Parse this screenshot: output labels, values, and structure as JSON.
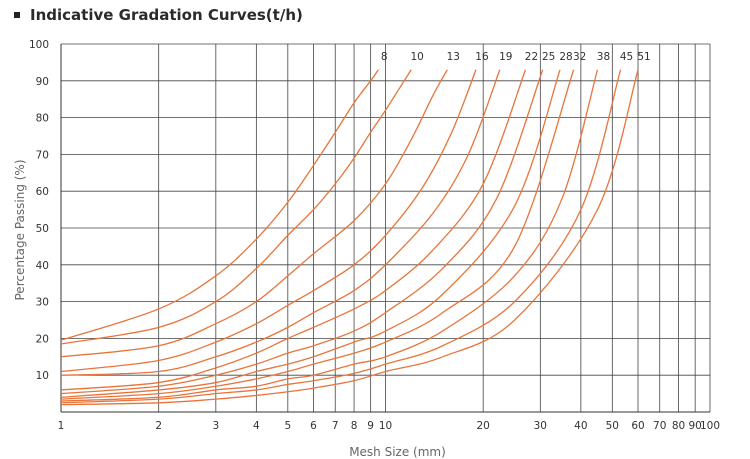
{
  "title": "Indicative Gradation Curves(t/h)",
  "chart_data": {
    "type": "line",
    "title": "Indicative Gradation Curves(t/h)",
    "xlabel": "Mesh Size (mm)",
    "ylabel": "Percentage Passing (%)",
    "x_scale": "log",
    "xlim": [
      1,
      100
    ],
    "ylim": [
      0,
      100
    ],
    "x_ticks": [
      1,
      2,
      3,
      4,
      5,
      6,
      7,
      8,
      9,
      10,
      20,
      30,
      40,
      50,
      60,
      70,
      80,
      90,
      100
    ],
    "y_ticks": [
      10,
      20,
      30,
      40,
      50,
      60,
      70,
      80,
      90,
      100
    ],
    "grid": true,
    "line_color": "#e8743b",
    "grid_color": "#444444",
    "series": [
      {
        "name": "8",
        "x": [
          1,
          2,
          3,
          4,
          5,
          6,
          7,
          8,
          9,
          9.5
        ],
        "y": [
          19.5,
          28,
          37,
          47,
          57,
          67,
          76,
          84,
          90,
          93
        ]
      },
      {
        "name": "10",
        "x": [
          1,
          2,
          3,
          4,
          5,
          6,
          7,
          8,
          9,
          10,
          12
        ],
        "y": [
          18.5,
          23,
          30,
          39,
          48,
          55,
          62,
          69,
          76,
          82,
          93
        ]
      },
      {
        "name": "13",
        "x": [
          1,
          2,
          3,
          4,
          5,
          6,
          8,
          10,
          12,
          14,
          15.5
        ],
        "y": [
          15,
          18,
          24,
          30,
          37,
          43,
          52,
          62,
          74,
          86,
          93
        ]
      },
      {
        "name": "16",
        "x": [
          1,
          2,
          3,
          4,
          5,
          6,
          8,
          10,
          13,
          16,
          19
        ],
        "y": [
          11,
          14,
          19,
          24,
          29,
          33,
          40,
          48,
          61,
          76,
          93
        ]
      },
      {
        "name": "19",
        "x": [
          1,
          2,
          3,
          4,
          5,
          6,
          8,
          10,
          14,
          18,
          22.5
        ],
        "y": [
          10,
          11,
          15,
          19,
          23,
          27,
          33,
          40,
          54,
          70,
          93
        ]
      },
      {
        "name": "22",
        "x": [
          1,
          2,
          3,
          4,
          5,
          6,
          8,
          10,
          14,
          20,
          27
        ],
        "y": [
          6,
          8,
          12,
          16,
          20,
          23,
          28,
          33,
          44,
          62,
          93
        ]
      },
      {
        "name": "25",
        "x": [
          1,
          2,
          3,
          4,
          5,
          6,
          8,
          10,
          15,
          22,
          30.5
        ],
        "y": [
          5,
          7,
          10,
          13,
          16,
          18,
          22,
          27,
          39,
          58,
          93
        ]
      },
      {
        "name": "28",
        "x": [
          1,
          2,
          3,
          4,
          5,
          6,
          8,
          10,
          15,
          25,
          34.5
        ],
        "y": [
          4,
          6,
          8,
          11,
          13,
          15,
          19,
          22,
          32,
          56,
          93
        ]
      },
      {
        "name": "32",
        "x": [
          1,
          2,
          3,
          4,
          5,
          6,
          8,
          10,
          15,
          25,
          38
        ],
        "y": [
          3.5,
          5,
          7,
          9,
          11,
          13,
          16,
          19,
          27,
          45,
          93
        ]
      },
      {
        "name": "38",
        "x": [
          1,
          2,
          3,
          4,
          5,
          6,
          8,
          10,
          15,
          25,
          35,
          45
        ],
        "y": [
          3,
          4,
          6,
          7,
          9,
          10,
          13,
          15,
          22,
          37,
          58,
          93
        ]
      },
      {
        "name": "45",
        "x": [
          1,
          2,
          3,
          4,
          5,
          6,
          8,
          10,
          15,
          25,
          40,
          53
        ],
        "y": [
          2.5,
          3.5,
          5,
          6,
          7.5,
          8.5,
          10.5,
          13,
          18,
          30,
          55,
          93
        ]
      },
      {
        "name": "51",
        "x": [
          1,
          2,
          3,
          4,
          5,
          6,
          8,
          10,
          15,
          25,
          45,
          60
        ],
        "y": [
          2,
          2.5,
          3.5,
          4.5,
          5.5,
          6.5,
          8.5,
          11,
          15,
          25,
          55,
          93
        ]
      }
    ]
  }
}
